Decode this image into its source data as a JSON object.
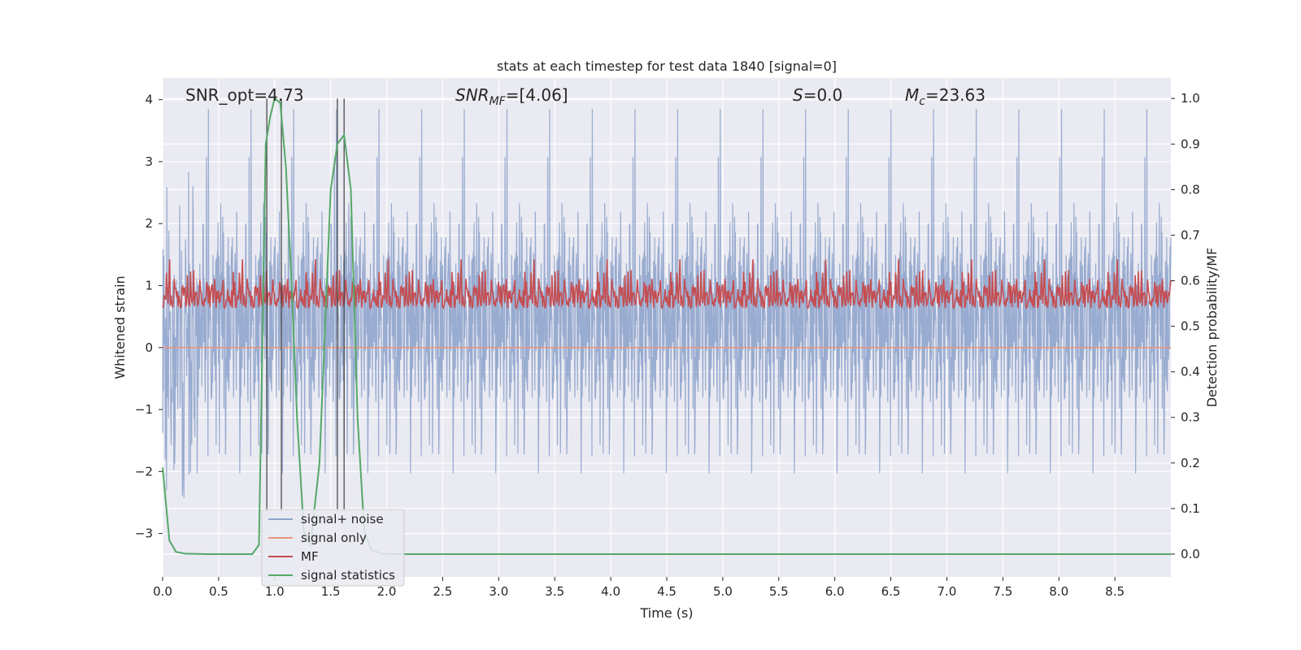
{
  "chart_data": {
    "type": "line",
    "title": "stats at each timestep for test data 1840 [signal=0]",
    "xlabel": "Time (s)",
    "ylabel": "Whitened strain",
    "ylabel_right": "Detection probability/MF",
    "xlim": [
      0,
      9.0
    ],
    "ylim": [
      -3.7,
      4.35
    ],
    "ylim_right": [
      -0.05,
      1.045
    ],
    "xticks": [
      "0.0",
      "0.5",
      "1.0",
      "1.5",
      "2.0",
      "2.5",
      "3.0",
      "3.5",
      "4.0",
      "4.5",
      "5.0",
      "5.5",
      "6.0",
      "6.5",
      "7.0",
      "7.5",
      "8.0",
      "8.5"
    ],
    "yticks": [
      "4",
      "3",
      "2",
      "1",
      "0",
      "−1",
      "−2",
      "−3"
    ],
    "yticks_right": [
      "1.0",
      "0.9",
      "0.8",
      "0.7",
      "0.6",
      "0.5",
      "0.4",
      "0.3",
      "0.2",
      "0.1",
      "0.0"
    ],
    "annotations": [
      {
        "text_main": "SNR_opt=4.73"
      },
      {
        "text_main": "SNR",
        "text_sub": "MF",
        "text_after": "=[4.06]"
      },
      {
        "text_main": "S",
        "text_after": "=0.0"
      },
      {
        "text_main": "M",
        "text_sub": "c",
        "text_after": "=23.63"
      }
    ],
    "vlines": [
      0.93,
      1.06,
      1.56,
      1.62
    ],
    "series": [
      {
        "name": "signal+ noise",
        "color": "#8fa4cc",
        "axis": "left",
        "description": "whitened noise, approx. std 1.1, range -3.3 to 3.9",
        "peak_values": [
          {
            "x": 2.68,
            "y": 3.85
          },
          {
            "x": 6.3,
            "y": 3.2
          }
        ]
      },
      {
        "name": "signal only",
        "color": "#e9967a",
        "axis": "left",
        "values_constant": 0
      },
      {
        "name": "MF",
        "color": "#c44e52",
        "axis": "right",
        "description": "fluctuates between 0.5 and 0.68",
        "peak_values": [
          {
            "x": 5.5,
            "y": 0.68
          }
        ]
      },
      {
        "name": "signal statistics",
        "color": "#55a868",
        "axis": "right",
        "x": [
          0.0,
          0.06,
          0.12,
          0.2,
          0.4,
          0.6,
          0.8,
          0.86,
          0.92,
          0.96,
          1.0,
          1.05,
          1.1,
          1.15,
          1.2,
          1.26,
          1.32,
          1.4,
          1.5,
          1.56,
          1.62,
          1.68,
          1.74,
          1.8,
          1.86,
          1.95,
          2.1,
          3.0,
          5.0,
          7.0,
          9.0
        ],
        "values": [
          0.19,
          0.03,
          0.005,
          0.001,
          0.0,
          0.0,
          0.0,
          0.02,
          0.9,
          0.96,
          1.0,
          0.99,
          0.85,
          0.6,
          0.3,
          0.05,
          0.02,
          0.2,
          0.8,
          0.9,
          0.92,
          0.8,
          0.3,
          0.05,
          0.01,
          0.001,
          0.0,
          0.0,
          0.0,
          0.0,
          0.0
        ]
      }
    ],
    "legend": {
      "position": "lower-left",
      "entries": [
        "signal+ noise",
        "signal only",
        "MF",
        "signal statistics"
      ]
    },
    "grid": true
  }
}
